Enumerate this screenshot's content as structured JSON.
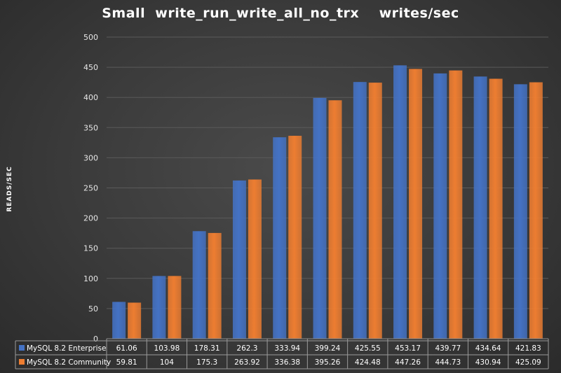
{
  "colors": {
    "enterprise": "#4472c4",
    "community": "#ed7d31",
    "grid": "#5a5a5a",
    "table_border": "#9a9a9a"
  },
  "chart_data": {
    "type": "bar",
    "title": "Small  write_run_write_all_no_trx    writes/sec",
    "ylabel": "READS/SEC",
    "xlabel": "",
    "ylim": [
      0,
      500
    ],
    "yticks": [
      0,
      50,
      100,
      150,
      200,
      250,
      300,
      350,
      400,
      450,
      500
    ],
    "grid": true,
    "legend": "data-table",
    "categories": [
      "",
      "",
      "",
      "",
      "",
      "",
      "",
      "",
      "",
      "",
      ""
    ],
    "series": [
      {
        "name": "MySQL 8.2 Enterprise",
        "color": "#4472c4",
        "values": [
          61.06,
          103.98,
          178.31,
          262.3,
          333.94,
          399.24,
          425.55,
          453.17,
          439.77,
          434.64,
          421.83
        ],
        "labels": [
          "61.06",
          "103.98",
          "178.31",
          "262.3",
          "333.94",
          "399.24",
          "425.55",
          "453.17",
          "439.77",
          "434.64",
          "421.83"
        ]
      },
      {
        "name": "MySQL 8.2 Community",
        "color": "#ed7d31",
        "values": [
          59.81,
          104,
          175.3,
          263.92,
          336.38,
          395.26,
          424.48,
          447.26,
          444.73,
          430.94,
          425.09
        ],
        "labels": [
          "59.81",
          "104",
          "175.3",
          "263.92",
          "336.38",
          "395.26",
          "424.48",
          "447.26",
          "444.73",
          "430.94",
          "425.09"
        ]
      }
    ]
  }
}
